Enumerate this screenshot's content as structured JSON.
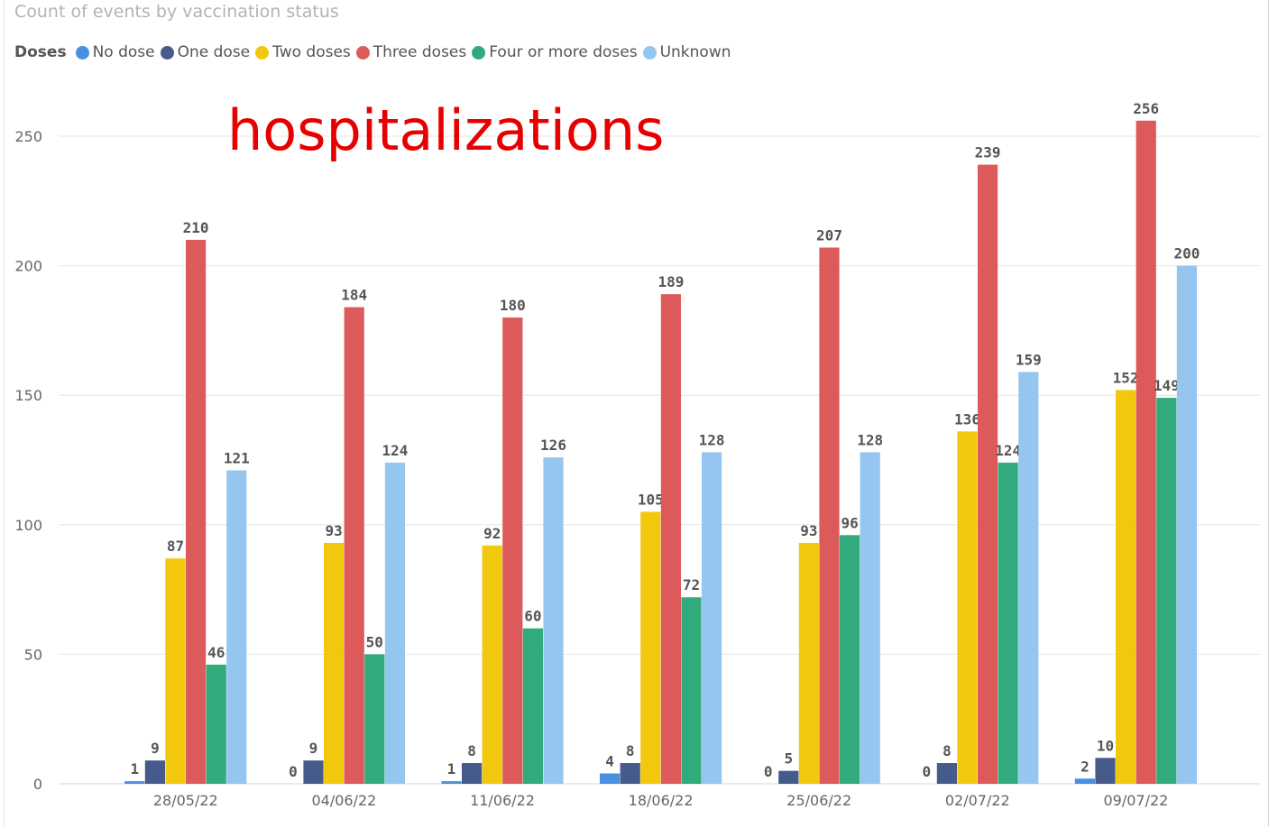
{
  "chart_data": {
    "type": "bar",
    "title": "Count of events by vaccination status",
    "annotation": "hospitalizations",
    "legend_title": "Doses",
    "legend_position": "top-left",
    "grid": true,
    "ylim": [
      0,
      262
    ],
    "yticks": [
      0,
      50,
      100,
      150,
      200,
      250
    ],
    "categories": [
      "28/05/22",
      "04/06/22",
      "11/06/22",
      "18/06/22",
      "25/06/22",
      "02/07/22",
      "09/07/22"
    ],
    "series": [
      {
        "name": "No dose",
        "color": "#4a8fe0",
        "values": [
          1,
          0,
          1,
          4,
          0,
          0,
          2
        ]
      },
      {
        "name": "One dose",
        "color": "#465a8c",
        "values": [
          9,
          9,
          8,
          8,
          5,
          8,
          10
        ]
      },
      {
        "name": "Two doses",
        "color": "#f2c80f",
        "values": [
          87,
          93,
          92,
          105,
          93,
          136,
          152
        ]
      },
      {
        "name": "Three doses",
        "color": "#dd5a5a",
        "values": [
          210,
          184,
          180,
          189,
          207,
          239,
          256
        ]
      },
      {
        "name": "Four or more doses",
        "color": "#31ab7c",
        "values": [
          46,
          50,
          60,
          72,
          96,
          124,
          149
        ]
      },
      {
        "name": "Unknown",
        "color": "#95c6f0",
        "values": [
          121,
          124,
          126,
          128,
          128,
          159,
          200
        ]
      }
    ]
  }
}
